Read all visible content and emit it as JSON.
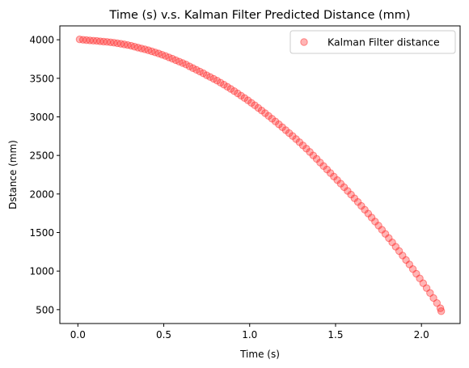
{
  "chart_data": {
    "type": "scatter",
    "title": "Time (s) v.s. Kalman Filter Predicted Distance (mm)",
    "xlabel": "Time (s)",
    "ylabel": "Dstance (mm)",
    "xlim": [
      -0.105,
      2.225
    ],
    "ylim": [
      320,
      4180
    ],
    "xticks": [
      0.0,
      0.5,
      1.0,
      1.5,
      2.0
    ],
    "xtick_labels": [
      "0.0",
      "0.5",
      "1.0",
      "1.5",
      "2.0"
    ],
    "yticks": [
      500,
      1000,
      1500,
      2000,
      2500,
      3000,
      3500,
      4000
    ],
    "ytick_labels": [
      "500",
      "1000",
      "1500",
      "2000",
      "2500",
      "3000",
      "3500",
      "4000"
    ],
    "grid": false,
    "legend_position": "upper right",
    "series": [
      {
        "name": "Kalman Filter distance",
        "color": "#ff2a2a",
        "marker": "circle",
        "alpha": 0.35,
        "points": [
          [
            0.01,
            4005
          ],
          [
            0.03,
            4000
          ],
          [
            0.05,
            3995
          ],
          [
            0.07,
            3992
          ],
          [
            0.09,
            3988
          ],
          [
            0.11,
            3985
          ],
          [
            0.13,
            3980
          ],
          [
            0.15,
            3976
          ],
          [
            0.17,
            3972
          ],
          [
            0.19,
            3967
          ],
          [
            0.21,
            3962
          ],
          [
            0.23,
            3955
          ],
          [
            0.25,
            3948
          ],
          [
            0.27,
            3940
          ],
          [
            0.29,
            3932
          ],
          [
            0.31,
            3922
          ],
          [
            0.33,
            3910
          ],
          [
            0.35,
            3898
          ],
          [
            0.37,
            3887
          ],
          [
            0.39,
            3876
          ],
          [
            0.41,
            3864
          ],
          [
            0.43,
            3850
          ],
          [
            0.45,
            3836
          ],
          [
            0.47,
            3822
          ],
          [
            0.49,
            3806
          ],
          [
            0.51,
            3790
          ],
          [
            0.53,
            3772
          ],
          [
            0.55,
            3754
          ],
          [
            0.57,
            3735
          ],
          [
            0.59,
            3716
          ],
          [
            0.61,
            3698
          ],
          [
            0.63,
            3678
          ],
          [
            0.65,
            3655
          ],
          [
            0.67,
            3632
          ],
          [
            0.69,
            3610
          ],
          [
            0.71,
            3588
          ],
          [
            0.73,
            3565
          ],
          [
            0.75,
            3540
          ],
          [
            0.77,
            3517
          ],
          [
            0.79,
            3494
          ],
          [
            0.81,
            3470
          ],
          [
            0.83,
            3444
          ],
          [
            0.85,
            3418
          ],
          [
            0.87,
            3390
          ],
          [
            0.89,
            3362
          ],
          [
            0.91,
            3334
          ],
          [
            0.93,
            3305
          ],
          [
            0.95,
            3275
          ],
          [
            0.97,
            3245
          ],
          [
            0.99,
            3214
          ],
          [
            1.01,
            3182
          ],
          [
            1.03,
            3150
          ],
          [
            1.05,
            3116
          ],
          [
            1.07,
            3082
          ],
          [
            1.09,
            3048
          ],
          [
            1.11,
            3012
          ],
          [
            1.13,
            2976
          ],
          [
            1.15,
            2940
          ],
          [
            1.17,
            2903
          ],
          [
            1.19,
            2866
          ],
          [
            1.21,
            2828
          ],
          [
            1.23,
            2790
          ],
          [
            1.25,
            2752
          ],
          [
            1.27,
            2712
          ],
          [
            1.29,
            2672
          ],
          [
            1.31,
            2630
          ],
          [
            1.33,
            2588
          ],
          [
            1.35,
            2545
          ],
          [
            1.37,
            2500
          ],
          [
            1.39,
            2455
          ],
          [
            1.41,
            2408
          ],
          [
            1.43,
            2362
          ],
          [
            1.45,
            2318
          ],
          [
            1.47,
            2272
          ],
          [
            1.49,
            2226
          ],
          [
            1.51,
            2180
          ],
          [
            1.53,
            2134
          ],
          [
            1.55,
            2088
          ],
          [
            1.57,
            2040
          ],
          [
            1.59,
            1992
          ],
          [
            1.61,
            1944
          ],
          [
            1.63,
            1896
          ],
          [
            1.65,
            1846
          ],
          [
            1.67,
            1796
          ],
          [
            1.69,
            1746
          ],
          [
            1.71,
            1694
          ],
          [
            1.73,
            1642
          ],
          [
            1.75,
            1590
          ],
          [
            1.77,
            1536
          ],
          [
            1.79,
            1482
          ],
          [
            1.81,
            1428
          ],
          [
            1.83,
            1372
          ],
          [
            1.85,
            1316
          ],
          [
            1.87,
            1260
          ],
          [
            1.89,
            1202
          ],
          [
            1.91,
            1144
          ],
          [
            1.93,
            1086
          ],
          [
            1.95,
            1026
          ],
          [
            1.97,
            966
          ],
          [
            1.99,
            905
          ],
          [
            2.01,
            843
          ],
          [
            2.03,
            780
          ],
          [
            2.05,
            716
          ],
          [
            2.07,
            651
          ],
          [
            2.09,
            585
          ],
          [
            2.11,
            518
          ],
          [
            2.115,
            480
          ]
        ]
      }
    ]
  }
}
